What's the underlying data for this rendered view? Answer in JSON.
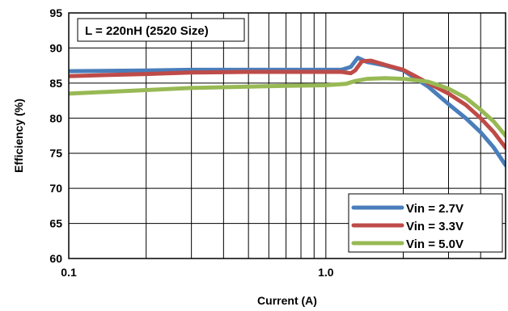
{
  "chart_data": {
    "type": "line",
    "title": "",
    "annotation": "L = 220nH (2520 Size)",
    "xlabel": "Current (A)",
    "ylabel": "Efficiency (%)",
    "xscale": "log",
    "xlim": [
      0.1,
      5
    ],
    "ylim": [
      60,
      95
    ],
    "x_tick_labels": [
      {
        "value": 0.1,
        "label": "0.1"
      },
      {
        "value": 1.0,
        "label": "1.0"
      }
    ],
    "x_minor_gridlines": [
      0.2,
      0.3,
      0.4,
      0.5,
      0.6,
      0.7,
      0.8,
      0.9,
      2,
      3,
      4
    ],
    "y_ticks": [
      60,
      65,
      70,
      75,
      80,
      85,
      90,
      95
    ],
    "grid": true,
    "legend_position": "bottom-right",
    "series": [
      {
        "name": "Vin = 2.7V",
        "color": "#4a7ebb",
        "x": [
          0.1,
          0.2,
          0.3,
          0.5,
          0.7,
          1.0,
          1.15,
          1.25,
          1.33,
          1.45,
          1.7,
          2.0,
          2.5,
          3.0,
          3.5,
          4.0,
          4.5,
          5.0
        ],
        "y": [
          86.7,
          86.8,
          86.9,
          86.9,
          86.9,
          86.9,
          86.9,
          87.3,
          88.6,
          88.0,
          87.5,
          86.8,
          84.5,
          82.0,
          80.0,
          78.0,
          75.8,
          73.3
        ]
      },
      {
        "name": "Vin = 3.3V",
        "color": "#be4b48",
        "x": [
          0.1,
          0.2,
          0.3,
          0.5,
          0.7,
          1.0,
          1.15,
          1.25,
          1.3,
          1.38,
          1.5,
          1.7,
          2.0,
          2.5,
          3.0,
          3.5,
          4.0,
          4.5,
          5.0
        ],
        "y": [
          86.0,
          86.3,
          86.5,
          86.6,
          86.6,
          86.6,
          86.6,
          86.4,
          86.8,
          88.1,
          88.2,
          87.6,
          86.9,
          85.0,
          83.5,
          81.9,
          80.0,
          78.0,
          75.8
        ]
      },
      {
        "name": "Vin = 5.0V",
        "color": "#98b954",
        "x": [
          0.1,
          0.2,
          0.3,
          0.5,
          0.7,
          1.0,
          1.2,
          1.3,
          1.45,
          1.7,
          2.0,
          2.5,
          3.0,
          3.5,
          4.0,
          4.5,
          5.0
        ],
        "y": [
          83.5,
          84.0,
          84.3,
          84.5,
          84.6,
          84.7,
          84.9,
          85.3,
          85.6,
          85.7,
          85.6,
          85.2,
          84.2,
          82.9,
          81.2,
          79.5,
          77.5
        ]
      }
    ]
  }
}
